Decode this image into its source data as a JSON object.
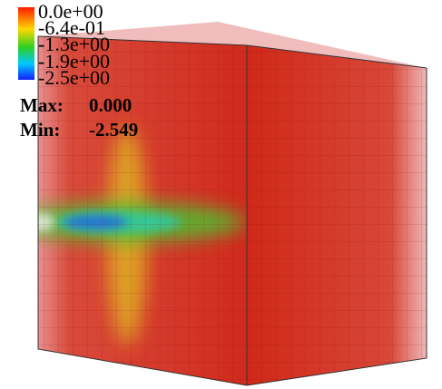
{
  "legend": {
    "labels": [
      "0.0e+00",
      "-6.4e-01",
      "-1.3e+00",
      "-1.9e+00",
      "-2.5e+00"
    ]
  },
  "stats": {
    "max_label": "Max:",
    "max_value": "0.000",
    "min_label": "Min:",
    "min_value": "-2.549"
  }
}
